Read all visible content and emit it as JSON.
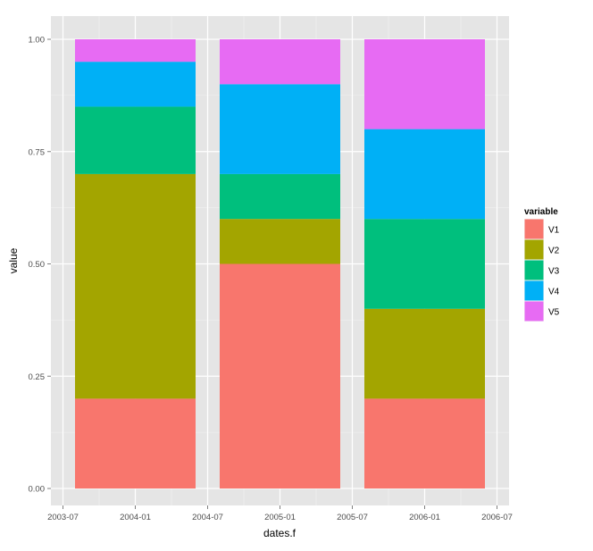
{
  "chart_data": {
    "type": "bar",
    "stacked": true,
    "xlabel": "dates.f",
    "ylabel": "value",
    "ylim": [
      0,
      1
    ],
    "y_ticks": [
      "0.00",
      "0.25",
      "0.50",
      "0.75",
      "1.00"
    ],
    "x_ticks": [
      "2003-07",
      "2004-01",
      "2004-07",
      "2005-01",
      "2005-07",
      "2006-01",
      "2006-07"
    ],
    "x_range": [
      "2003-06",
      "2006-08"
    ],
    "grid": true,
    "legend_position": "right",
    "legend_title": "variable",
    "bars": [
      {
        "start": "2003-08",
        "end": "2004-06"
      },
      {
        "start": "2004-08",
        "end": "2005-06"
      },
      {
        "start": "2005-08",
        "end": "2006-06"
      }
    ],
    "series": [
      {
        "name": "V1",
        "color": "#F8766D",
        "values": [
          0.2,
          0.5,
          0.2
        ]
      },
      {
        "name": "V2",
        "color": "#A3A500",
        "values": [
          0.5,
          0.1,
          0.2
        ]
      },
      {
        "name": "V3",
        "color": "#00BF7D",
        "values": [
          0.15,
          0.1,
          0.2
        ]
      },
      {
        "name": "V4",
        "color": "#00B0F6",
        "values": [
          0.1,
          0.2,
          0.2
        ]
      },
      {
        "name": "V5",
        "color": "#E76BF3",
        "values": [
          0.05,
          0.1,
          0.2
        ]
      }
    ],
    "colors": {
      "panel": "#E5E5E5",
      "grid_major": "#FFFFFF",
      "grid_minor": "#F2F2F2"
    }
  }
}
